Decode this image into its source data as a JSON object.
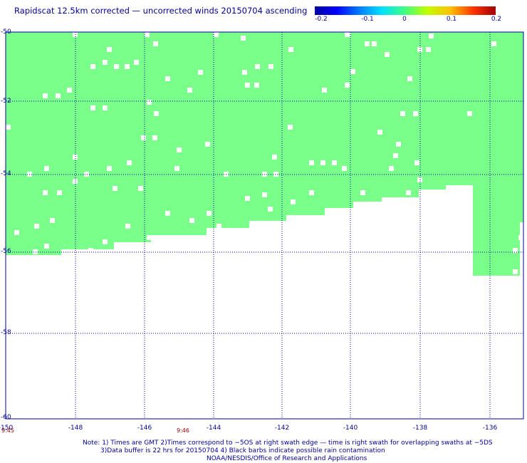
{
  "title": "Rapidscat 12.5km corrected — uncorrected winds 20150704 ascending",
  "colorbar": {
    "ticks": [
      "-0.2",
      "-0.1",
      "0",
      "0.1",
      "0.2"
    ],
    "colors": [
      "#0000a0",
      "#0080ff",
      "#40ff80",
      "#ffc000",
      "#a00000"
    ]
  },
  "map": {
    "fill_color": "#7aff8a",
    "lat_labels": [
      "-50",
      "-52",
      "-54",
      "-56",
      "-58",
      "-60"
    ],
    "lon_labels": [
      "-150",
      "-148",
      "-146",
      "-144",
      "-142",
      "-140",
      "-138",
      "-136"
    ],
    "grid_color": "#0000aa",
    "lon_range": [
      -150,
      -134.9
    ],
    "lat_range": [
      -60,
      -50
    ]
  },
  "pass_times": [
    "9:45",
    "9:46"
  ],
  "notes": [
    "Note: 1) Times are GMT 2)Times correspond to −5OS at right swath edge — time is right swath for overlapping swaths at −5DS",
    "3)Data buffer is 22 hrs for 20150704 4) Black barbs indicate possible rain contamination",
    "NOAA/NESDIS/Office of Research and Applications"
  ]
}
